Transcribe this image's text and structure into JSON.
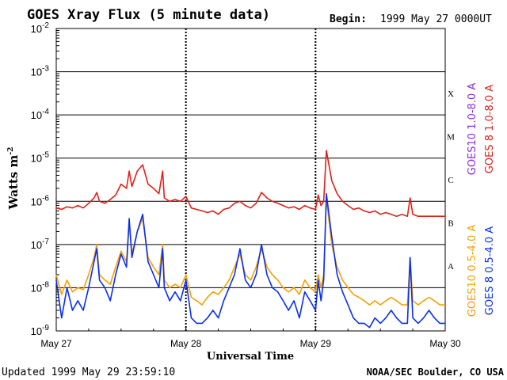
{
  "header": {
    "title": "GOES Xray Flux (5 minute data)",
    "begin_label": "Begin:",
    "begin_value": "1999 May 27 0000UT"
  },
  "footer": {
    "updated": "Updated 1999 May 29 23:59:10",
    "credit": "NOAA/SEC Boulder, CO USA"
  },
  "chart_data": {
    "type": "line",
    "title": "GOES Xray Flux (5 minute data)",
    "xlabel": "Universal Time",
    "ylabel": "Watts m",
    "ylabel_superscript": "-2",
    "yscale": "log",
    "ylim": [
      1e-09,
      0.01
    ],
    "xlim": [
      "1999-05-27 00:00",
      "1999-05-30 00:00"
    ],
    "x_ticks": [
      "May 27",
      "May 28",
      "May 29",
      "May 30"
    ],
    "y_ticks": [
      {
        "base": "10",
        "exp": "-9"
      },
      {
        "base": "10",
        "exp": "-8"
      },
      {
        "base": "10",
        "exp": "-7"
      },
      {
        "base": "10",
        "exp": "-6"
      },
      {
        "base": "10",
        "exp": "-5"
      },
      {
        "base": "10",
        "exp": "-4"
      },
      {
        "base": "10",
        "exp": "-3"
      },
      {
        "base": "10",
        "exp": "-2"
      }
    ],
    "flare_classes": [
      {
        "label": "A",
        "value": 1e-08
      },
      {
        "label": "B",
        "value": 1e-07
      },
      {
        "label": "C",
        "value": 1e-06
      },
      {
        "label": "M",
        "value": 1e-05
      },
      {
        "label": "X",
        "value": 0.0001
      }
    ],
    "legend": [
      {
        "text": "GOES10 1.0-8.0 A",
        "color": "#8a2be2"
      },
      {
        "text": "GOES 8 1.0-8.0 A",
        "color": "#e0201a"
      },
      {
        "text": "GOES10 0.5-4.0 A",
        "color": "#f5a000"
      },
      {
        "text": "GOES 8 0.5-4.0 A",
        "color": "#0a2ff0"
      }
    ],
    "grid": true,
    "day_separators": true,
    "series": [
      {
        "name": "GOES 8 1.0-8.0 A",
        "color": "#e0201a",
        "x_hours": [
          0,
          1,
          2,
          3,
          4,
          5,
          6,
          7,
          7.5,
          8,
          9,
          10,
          11,
          12,
          13,
          13.5,
          14,
          15,
          16,
          17,
          18,
          19,
          19.7,
          20,
          21,
          22,
          23,
          24,
          25,
          26,
          27,
          28,
          29,
          30,
          31,
          32,
          33,
          34,
          35,
          36,
          37,
          38,
          39,
          40,
          41,
          42,
          43,
          44,
          45,
          46,
          47,
          48,
          48.5,
          49,
          49.5,
          50,
          51,
          52,
          53,
          54,
          55,
          56,
          57,
          58,
          59,
          60,
          61,
          62,
          63,
          64,
          65,
          65.5,
          66,
          67,
          68,
          69,
          70,
          71,
          72
        ],
        "values": [
          7e-07,
          6.5e-07,
          7.5e-07,
          7e-07,
          8e-07,
          7e-07,
          9e-07,
          1.2e-06,
          1.6e-06,
          1e-06,
          9e-07,
          1.1e-06,
          1.4e-06,
          2.5e-06,
          2e-06,
          5e-06,
          2.2e-06,
          5e-06,
          7e-06,
          2.5e-06,
          2e-06,
          1.5e-06,
          5e-06,
          1.2e-06,
          1e-06,
          1.1e-06,
          1e-06,
          1.3e-06,
          7e-07,
          6.5e-07,
          6e-07,
          5.5e-07,
          6e-07,
          5e-07,
          6.5e-07,
          7e-07,
          9e-07,
          1e-06,
          8e-07,
          7e-07,
          9e-07,
          1.6e-06,
          1.2e-06,
          1e-06,
          9e-07,
          8e-07,
          7e-07,
          7.5e-07,
          6.5e-07,
          8e-07,
          7e-07,
          6.5e-07,
          1.4e-06,
          8e-07,
          1e-06,
          1.5e-05,
          3e-06,
          1.5e-06,
          1e-06,
          8e-07,
          6.5e-07,
          7e-07,
          6e-07,
          5.5e-07,
          6e-07,
          5e-07,
          5.5e-07,
          5e-07,
          4.5e-07,
          5e-07,
          4.5e-07,
          1.2e-06,
          5e-07,
          4.5e-07,
          4.5e-07,
          4.5e-07,
          4.5e-07,
          4.5e-07,
          4.5e-07
        ]
      },
      {
        "name": "GOES10 0.5-4.0 A",
        "color": "#f5a000",
        "x_hours": [
          0,
          1,
          2,
          3,
          4,
          5,
          6,
          7,
          7.5,
          8,
          9,
          10,
          11,
          12,
          13,
          13.5,
          14,
          15,
          16,
          17,
          18,
          19,
          19.7,
          20,
          21,
          22,
          23,
          24,
          25,
          26,
          27,
          28,
          29,
          30,
          31,
          32,
          33,
          34,
          35,
          36,
          37,
          38,
          39,
          40,
          41,
          42,
          43,
          44,
          45,
          46,
          47,
          48,
          48.5,
          49,
          49.5,
          50,
          51,
          52,
          53,
          54,
          55,
          56,
          57,
          58,
          59,
          60,
          61,
          62,
          63,
          64,
          65,
          65.5,
          66,
          67,
          68,
          69,
          70,
          71,
          72
        ],
        "values": [
          2e-08,
          7e-09,
          1.5e-08,
          8e-09,
          1e-08,
          9e-09,
          2e-08,
          5e-08,
          1e-07,
          2e-08,
          1.5e-08,
          1.2e-08,
          3e-08,
          7e-08,
          4e-08,
          3e-07,
          6e-08,
          2e-07,
          4e-07,
          5e-08,
          3e-08,
          2e-08,
          1e-07,
          1.5e-08,
          1e-08,
          1.2e-08,
          1e-08,
          2e-08,
          6e-09,
          5e-09,
          4e-09,
          6e-09,
          8e-09,
          7e-09,
          1e-08,
          1.5e-08,
          3e-08,
          6e-08,
          2e-08,
          1.5e-08,
          3e-08,
          8e-08,
          3e-08,
          2e-08,
          1.5e-08,
          1e-08,
          8e-09,
          1e-08,
          7e-09,
          1.5e-08,
          1e-08,
          8e-09,
          2e-08,
          1e-08,
          2e-08,
          1.2e-06,
          1e-07,
          3e-08,
          1.5e-08,
          1e-08,
          7e-09,
          6e-09,
          5e-09,
          4e-09,
          5e-09,
          4e-09,
          5e-09,
          6e-09,
          5e-09,
          4e-09,
          4e-09,
          5e-08,
          5e-09,
          4e-09,
          5e-09,
          6e-09,
          5e-09,
          4e-09,
          4e-09
        ]
      },
      {
        "name": "GOES 8 0.5-4.0 A",
        "color": "#0a2ff0",
        "x_hours": [
          0,
          1,
          2,
          3,
          4,
          5,
          6,
          7,
          7.5,
          8,
          9,
          10,
          11,
          12,
          13,
          13.5,
          14,
          15,
          16,
          17,
          18,
          19,
          19.7,
          20,
          21,
          22,
          23,
          24,
          25,
          26,
          27,
          28,
          29,
          30,
          31,
          32,
          33,
          34,
          35,
          36,
          37,
          38,
          39,
          40,
          41,
          42,
          43,
          44,
          45,
          46,
          47,
          48,
          48.5,
          49,
          49.5,
          50,
          51,
          52,
          53,
          54,
          55,
          56,
          57,
          58,
          59,
          60,
          61,
          62,
          63,
          64,
          65,
          65.5,
          66,
          67,
          68,
          69,
          70,
          71,
          72
        ],
        "values": [
          1.5e-08,
          2e-09,
          1e-08,
          3e-09,
          5e-09,
          3e-09,
          1e-08,
          4e-08,
          8e-08,
          1.5e-08,
          1e-08,
          5e-09,
          2e-08,
          6e-08,
          3e-08,
          4e-07,
          5e-08,
          2e-07,
          5e-07,
          4e-08,
          2e-08,
          1e-08,
          8e-08,
          1e-08,
          5e-09,
          8e-09,
          5e-09,
          1.5e-08,
          2e-09,
          1.5e-09,
          1.5e-09,
          2e-09,
          3e-09,
          2e-09,
          5e-09,
          1e-08,
          2e-08,
          8e-08,
          1.5e-08,
          1e-08,
          2e-08,
          1e-07,
          2e-08,
          1e-08,
          8e-09,
          5e-09,
          3e-09,
          5e-09,
          2e-09,
          8e-09,
          5e-09,
          3e-09,
          1.5e-08,
          5e-09,
          1.5e-08,
          1.5e-06,
          1.5e-07,
          2e-08,
          8e-09,
          4e-09,
          2e-09,
          1.5e-09,
          1.5e-09,
          1.2e-09,
          2e-09,
          1.5e-09,
          2e-09,
          3e-09,
          2e-09,
          1.5e-09,
          1.5e-09,
          5e-08,
          2e-09,
          1.5e-09,
          2e-09,
          3e-09,
          2e-09,
          1.5e-09,
          1.5e-09
        ]
      }
    ]
  }
}
